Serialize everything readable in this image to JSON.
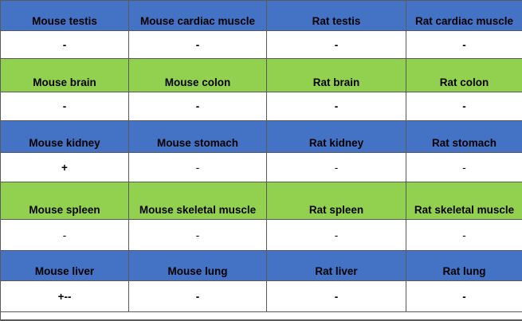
{
  "colors": {
    "blue_header": "#4472c4",
    "green_header": "#92d050",
    "cell_background": "#ffffff",
    "grid_line": "#5a5a5a"
  },
  "table": {
    "rows": [
      {
        "kind": "header",
        "color": "blue",
        "cells": [
          "Mouse testis",
          "Mouse cardiac muscle",
          "Rat testis",
          "Rat cardiac muscle"
        ]
      },
      {
        "kind": "value",
        "bold": true,
        "cells": [
          "-",
          "-",
          "-",
          "-"
        ]
      },
      {
        "kind": "header",
        "color": "green",
        "cells": [
          "Mouse brain",
          "Mouse colon",
          "Rat brain",
          "Rat colon"
        ]
      },
      {
        "kind": "value",
        "bold": true,
        "cells": [
          "-",
          "-",
          "-",
          "-"
        ]
      },
      {
        "kind": "header",
        "color": "blue",
        "cells": [
          "Mouse kidney",
          "Mouse stomach",
          "Rat kidney",
          "Rat stomach"
        ]
      },
      {
        "kind": "value",
        "bold": false,
        "cells": [
          "+",
          "-",
          "-",
          "-"
        ]
      },
      {
        "kind": "header",
        "color": "green",
        "cells": [
          "Mouse spleen",
          "Mouse skeletal muscle",
          "Rat spleen",
          "Rat skeletal muscle"
        ]
      },
      {
        "kind": "value",
        "bold": false,
        "cells": [
          "-",
          "-",
          "-",
          "-"
        ]
      },
      {
        "kind": "header",
        "color": "blue",
        "cells": [
          "Mouse liver",
          "Mouse lung",
          "Rat liver",
          "Rat lung"
        ]
      },
      {
        "kind": "value",
        "bold": true,
        "cells": [
          "+--",
          "-",
          "-",
          "-"
        ]
      }
    ]
  }
}
